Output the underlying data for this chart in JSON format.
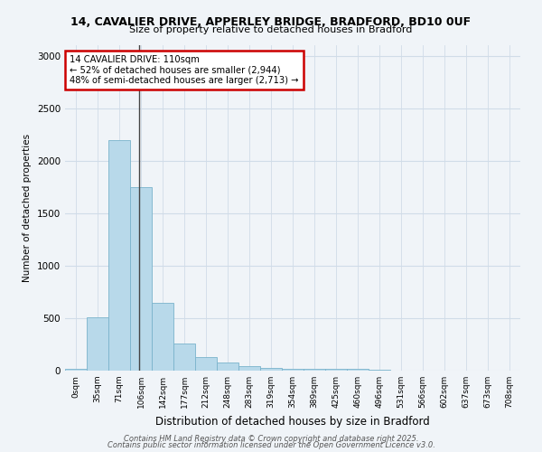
{
  "title1": "14, CAVALIER DRIVE, APPERLEY BRIDGE, BRADFORD, BD10 0UF",
  "title2": "Size of property relative to detached houses in Bradford",
  "xlabel": "Distribution of detached houses by size in Bradford",
  "ylabel": "Number of detached properties",
  "footer1": "Contains HM Land Registry data © Crown copyright and database right 2025.",
  "footer2": "Contains public sector information licensed under the Open Government Licence v3.0.",
  "annotation_title": "14 CAVALIER DRIVE: 110sqm",
  "annotation_line1": "← 52% of detached houses are smaller (2,944)",
  "annotation_line2": "48% of semi-detached houses are larger (2,713) →",
  "bar_labels": [
    "0sqm",
    "35sqm",
    "71sqm",
    "106sqm",
    "142sqm",
    "177sqm",
    "212sqm",
    "248sqm",
    "283sqm",
    "319sqm",
    "354sqm",
    "389sqm",
    "425sqm",
    "460sqm",
    "496sqm",
    "531sqm",
    "566sqm",
    "602sqm",
    "637sqm",
    "673sqm",
    "708sqm"
  ],
  "bar_values": [
    20,
    510,
    2200,
    1750,
    650,
    260,
    130,
    80,
    40,
    25,
    15,
    20,
    15,
    20,
    5,
    2,
    1,
    1,
    1,
    0,
    0
  ],
  "bar_color": "#b8d9ea",
  "bar_edge_color": "#7ab3cc",
  "marker_color": "#444444",
  "ylim": [
    0,
    3100
  ],
  "yticks": [
    0,
    500,
    1000,
    1500,
    2000,
    2500,
    3000
  ],
  "annotation_box_color": "#cc0000",
  "background_color": "#f0f4f8",
  "grid_color": "#d0dce8"
}
